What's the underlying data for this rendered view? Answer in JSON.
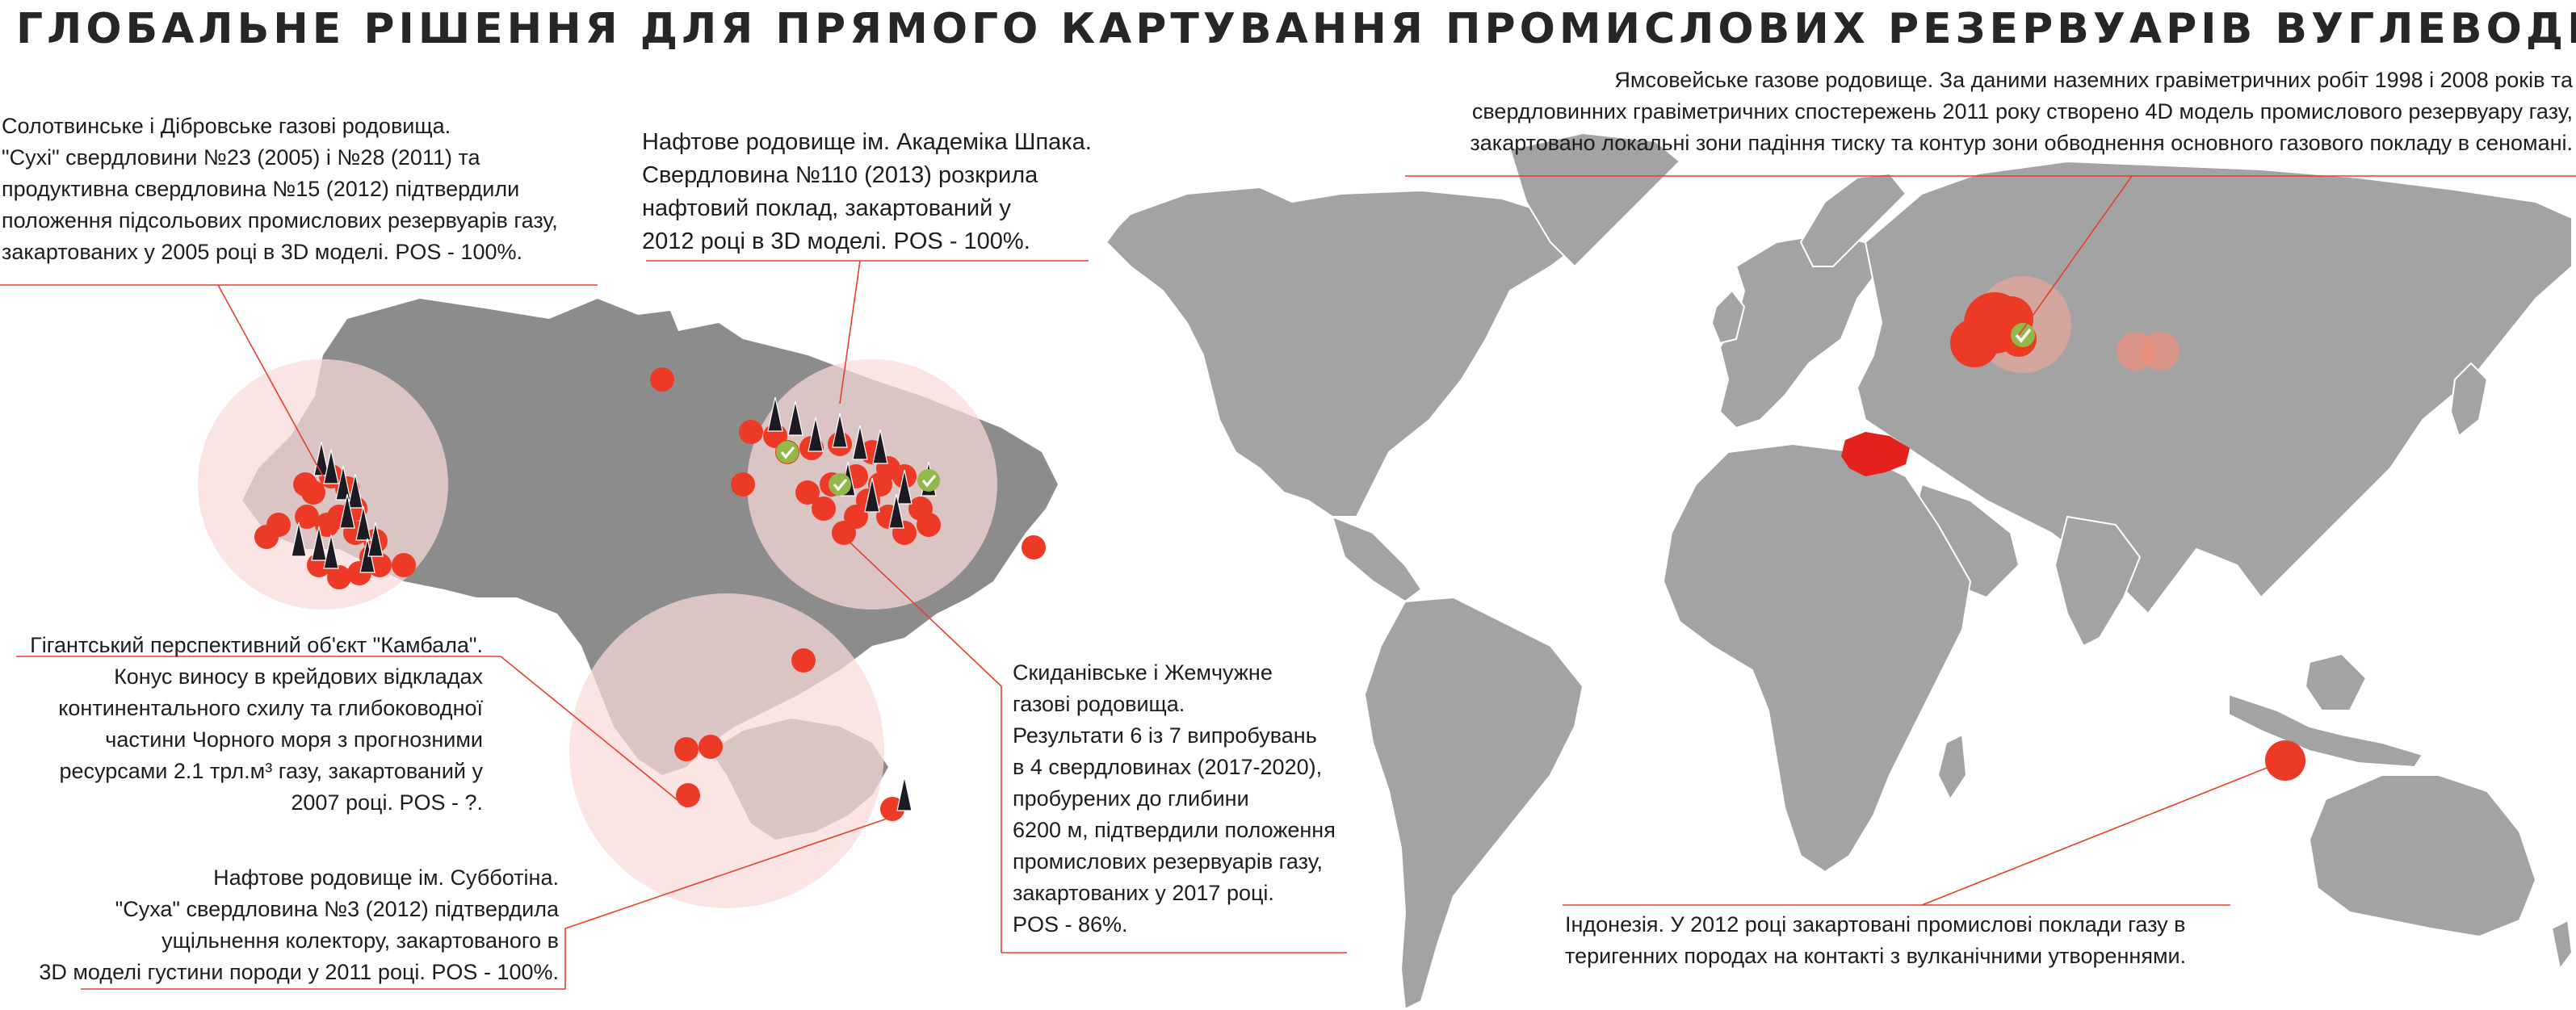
{
  "title": "ГЛОБАЛЬНЕ РІШЕННЯ ДЛЯ ПРЯМОГО КАРТУВАННЯ ПРОМИСЛОВИХ РЕЗЕРВУАРІВ ВУГЛЕВОДНІВ",
  "colors": {
    "land": "#a3a3a3",
    "ukraine": "#8c8c8c",
    "highlight_circle": "#f9d9d9",
    "well_point": "#ed3a26",
    "success_check": "#93b84a",
    "ukraine_on_world": "#e5211c",
    "leader_line": "#e5412d"
  },
  "icons": [
    "well-derrick-icon",
    "check-mark-icon"
  ],
  "annotations": {
    "solotvynske": [
      "Солотвинське і Дібровське газові родовища.",
      "\"Сухі\" свердловини №23 (2005) і №28 (2011) та",
      "продуктивна свердловина №15 (2012) підтвердили",
      "положення підсольових промислових резервуарів газу,",
      "закартованих у 2005 році в 3D моделі.   POS - 100%."
    ],
    "shpak": [
      "Нафтове родовище ім.  Академіка Шпака.",
      "Свердловина №110 (2013) розкрила",
      "нафтовий поклад, закартований у",
      "2012 році в 3D моделі. POS - 100%."
    ],
    "yamsovey": [
      "Ямсовейське газове родовище.  За даними наземних гравіметричних робіт 1998 і 2008 років та",
      "свердловинних гравіметричних спостережень 2011 року створено 4D модель промислового резервуару газу,",
      "закартовано локальні зони падіння тиску та контур зони обводнення основного газового покладу в сеномані."
    ],
    "kambala": [
      "Гігантський перспективний об'єкт \"Камбала\".",
      "Конус виносу в крейдових відкладах",
      "континентального схилу та глибоководної",
      "частини Чорного моря з прогнозними",
      "ресурсами 2.1 трл.м³ газу, закартований у",
      "2007 році. POS - ?."
    ],
    "skydanivske": [
      "Скиданівське і Жемчужне",
      "газові родовища.",
      "Результати 6 із 7 випробувань",
      "в 4 свердловинах (2017-2020),",
      "пробурених до глибини",
      "6200 м, підтвердили положення",
      "промислових резервуарів газу,",
      "закартованих у 2017 році.",
      "POS - 86%."
    ],
    "subbotina": [
      "Нафтове родовище ім. Субботіна.",
      "\"Суха\" свердловина №3 (2012) підтвердила",
      "ущільнення колектору, закартованого в",
      "3D моделі густини породи у 2011 році. POS - 100%."
    ],
    "indonesia": [
      "Індонезія.  У 2012 році закартовані промислові поклади газу в",
      "теригенних  породах на контакті з вулканічними утвореннями."
    ]
  }
}
